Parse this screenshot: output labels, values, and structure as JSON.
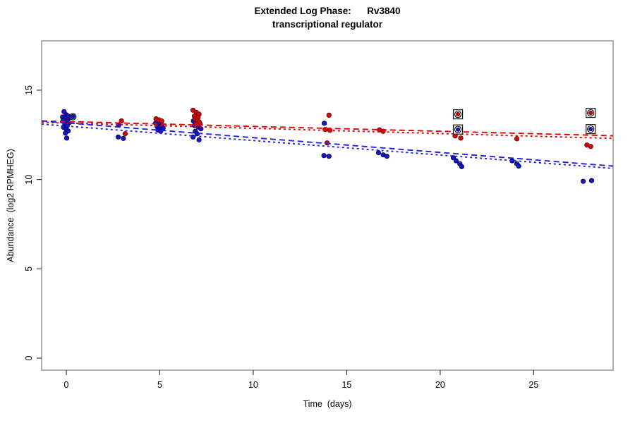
{
  "chart_data": {
    "type": "scatter",
    "title": "Extended Log Phase:      Rv3840",
    "subtitle": "transcriptional regulator",
    "xlabel": "Time  (days)",
    "ylabel": "Abundance  (log2 RPMHEG)",
    "xlim": [
      -1.32,
      29.25
    ],
    "ylim": [
      -0.67,
      17.76
    ],
    "x_ticks": [
      "0",
      "5",
      "10",
      "15",
      "20",
      "25"
    ],
    "x_tick_values": [
      0,
      5,
      10,
      15,
      20,
      25
    ],
    "y_ticks": [
      "0",
      "5",
      "10",
      "15"
    ],
    "y_tick_values": [
      0,
      5,
      10,
      15
    ],
    "grid": false,
    "legend": "none",
    "colors": {
      "red_point": "#d90606",
      "red_edge": "#550000",
      "blue_point": "#1414c8",
      "blue_edge": "#000045",
      "red_line": "#e80000",
      "blue_line": "#2020e0",
      "marker_outline": "#111111",
      "box_border": "#7d7d7d"
    },
    "series": [
      {
        "name": "red-condition",
        "color": "#d90606",
        "edge": "#550000",
        "points": [
          [
            2.95,
            13.28
          ],
          [
            3.15,
            12.56
          ],
          [
            4.8,
            13.4
          ],
          [
            4.95,
            13.34
          ],
          [
            5.1,
            13.28
          ],
          [
            6.78,
            13.88
          ],
          [
            6.95,
            13.76
          ],
          [
            7.1,
            13.66
          ],
          [
            6.85,
            13.55
          ],
          [
            7.05,
            13.48
          ],
          [
            6.9,
            13.38
          ],
          [
            7.0,
            13.3
          ],
          [
            7.12,
            13.22
          ],
          [
            6.95,
            13.12
          ],
          [
            14.05,
            13.6
          ],
          [
            13.85,
            12.8
          ],
          [
            14.1,
            12.76
          ],
          [
            13.95,
            12.05
          ],
          [
            16.75,
            12.78
          ],
          [
            16.95,
            12.7
          ],
          [
            20.8,
            12.44
          ],
          [
            21.1,
            12.32
          ],
          [
            24.1,
            12.28
          ],
          [
            27.85,
            11.93
          ],
          [
            28.05,
            11.85
          ]
        ]
      },
      {
        "name": "blue-condition",
        "color": "#1414c8",
        "edge": "#000045",
        "points": [
          [
            -0.12,
            13.8
          ],
          [
            0.0,
            13.62
          ],
          [
            -0.2,
            13.5
          ],
          [
            0.1,
            13.55
          ],
          [
            -0.05,
            13.42
          ],
          [
            0.08,
            13.35
          ],
          [
            -0.18,
            13.28
          ],
          [
            0.02,
            13.22
          ],
          [
            0.15,
            13.18
          ],
          [
            -0.08,
            13.1
          ],
          [
            0.05,
            13.02
          ],
          [
            -0.15,
            12.92
          ],
          [
            0.0,
            12.82
          ],
          [
            0.1,
            12.72
          ],
          [
            -0.05,
            12.6
          ],
          [
            0.02,
            12.32
          ],
          [
            2.8,
            13.05
          ],
          [
            2.78,
            12.38
          ],
          [
            3.05,
            12.3
          ],
          [
            4.78,
            13.16
          ],
          [
            4.95,
            13.1
          ],
          [
            5.12,
            13.05
          ],
          [
            4.85,
            12.98
          ],
          [
            5.0,
            12.92
          ],
          [
            5.18,
            12.88
          ],
          [
            4.9,
            12.78
          ],
          [
            5.05,
            12.7
          ],
          [
            6.8,
            13.28
          ],
          [
            7.0,
            13.2
          ],
          [
            7.15,
            13.12
          ],
          [
            6.85,
            13.02
          ],
          [
            7.05,
            12.94
          ],
          [
            7.2,
            12.84
          ],
          [
            6.9,
            12.7
          ],
          [
            7.0,
            12.56
          ],
          [
            6.78,
            12.38
          ],
          [
            7.1,
            12.22
          ],
          [
            13.8,
            13.15
          ],
          [
            13.78,
            11.34
          ],
          [
            14.05,
            11.3
          ],
          [
            16.7,
            11.5
          ],
          [
            16.95,
            11.38
          ],
          [
            17.15,
            11.3
          ],
          [
            20.7,
            11.22
          ],
          [
            20.85,
            11.05
          ],
          [
            21.05,
            10.88
          ],
          [
            21.15,
            10.72
          ],
          [
            23.85,
            11.05
          ],
          [
            24.1,
            10.88
          ],
          [
            24.2,
            10.75
          ],
          [
            27.65,
            9.9
          ],
          [
            28.1,
            9.94
          ]
        ]
      }
    ],
    "outliers_marked": [
      {
        "series": "red",
        "x": 20.95,
        "y": 13.65
      },
      {
        "series": "red",
        "x": 28.05,
        "y": 13.73
      },
      {
        "series": "blue",
        "x": 20.95,
        "y": 12.8
      },
      {
        "series": "blue",
        "x": 28.05,
        "y": 12.82
      }
    ],
    "circled_point": {
      "series": "blue",
      "x": 0.35,
      "y": 13.52
    },
    "trend_lines": [
      {
        "name": "red-fit-dashed",
        "color": "#e80000",
        "style": "dashed",
        "y_left": 13.28,
        "y_right": 12.45
      },
      {
        "name": "red-fit-dotted",
        "color": "#e80000",
        "style": "dotted",
        "y_left": 13.2,
        "y_right": 12.3
      },
      {
        "name": "blue-fit-dashed",
        "color": "#2020e0",
        "style": "dashed",
        "y_left": 13.28,
        "y_right": 10.75
      },
      {
        "name": "blue-fit-dotted",
        "color": "#2020e0",
        "style": "dotted",
        "y_left": 13.1,
        "y_right": 10.62
      }
    ]
  }
}
